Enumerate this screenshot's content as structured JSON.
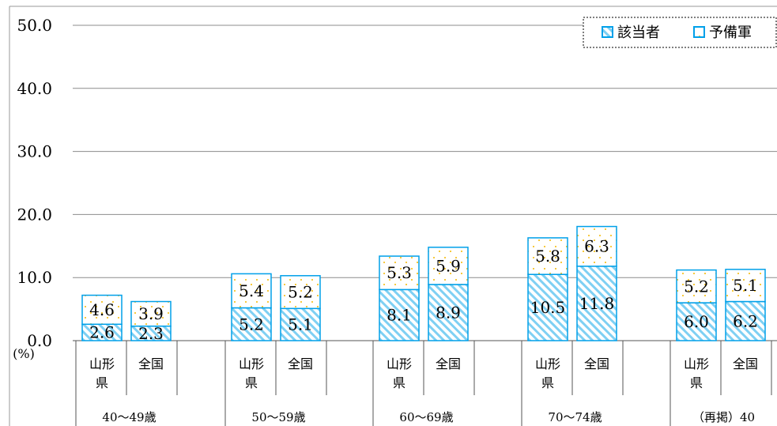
{
  "chart_data": {
    "type": "bar",
    "stacked": true,
    "unit": "(%)",
    "ylim": [
      0,
      50
    ],
    "yticks": [
      "0.0",
      "10.0",
      "20.0",
      "30.0",
      "40.0",
      "50.0"
    ],
    "ytick_values": [
      0,
      10,
      20,
      30,
      40,
      50
    ],
    "grid": true,
    "legend_position": "top-right",
    "groups": [
      "40～49歳",
      "50～59歳",
      "60～69歳",
      "70～74歳",
      "（再掲）40"
    ],
    "categories": [
      "山形県",
      "全国"
    ],
    "series": [
      {
        "name": "該当者",
        "color": "#00a0e9",
        "pattern": "diagonal-hatch",
        "values": [
          [
            2.6,
            2.3
          ],
          [
            5.2,
            5.1
          ],
          [
            8.1,
            8.9
          ],
          [
            10.5,
            11.8
          ],
          [
            6.0,
            6.2
          ]
        ],
        "labels": [
          [
            "2.6",
            "2.3"
          ],
          [
            "5.2",
            "5.1"
          ],
          [
            "8.1",
            "8.9"
          ],
          [
            "10.5",
            "11.8"
          ],
          [
            "6.0",
            "6.2"
          ]
        ]
      },
      {
        "name": "予備軍",
        "color": "#00a0e9",
        "pattern": "dots",
        "values": [
          [
            4.6,
            3.9
          ],
          [
            5.4,
            5.2
          ],
          [
            5.3,
            5.9
          ],
          [
            5.8,
            6.3
          ],
          [
            5.2,
            5.1
          ]
        ],
        "labels": [
          [
            "4.6",
            "3.9"
          ],
          [
            "5.4",
            "5.2"
          ],
          [
            "5.3",
            "5.9"
          ],
          [
            "5.8",
            "6.3"
          ],
          [
            "5.2",
            "5.1"
          ]
        ]
      }
    ],
    "category_labels": [
      [
        "山形",
        "県"
      ],
      [
        "全国"
      ]
    ]
  }
}
